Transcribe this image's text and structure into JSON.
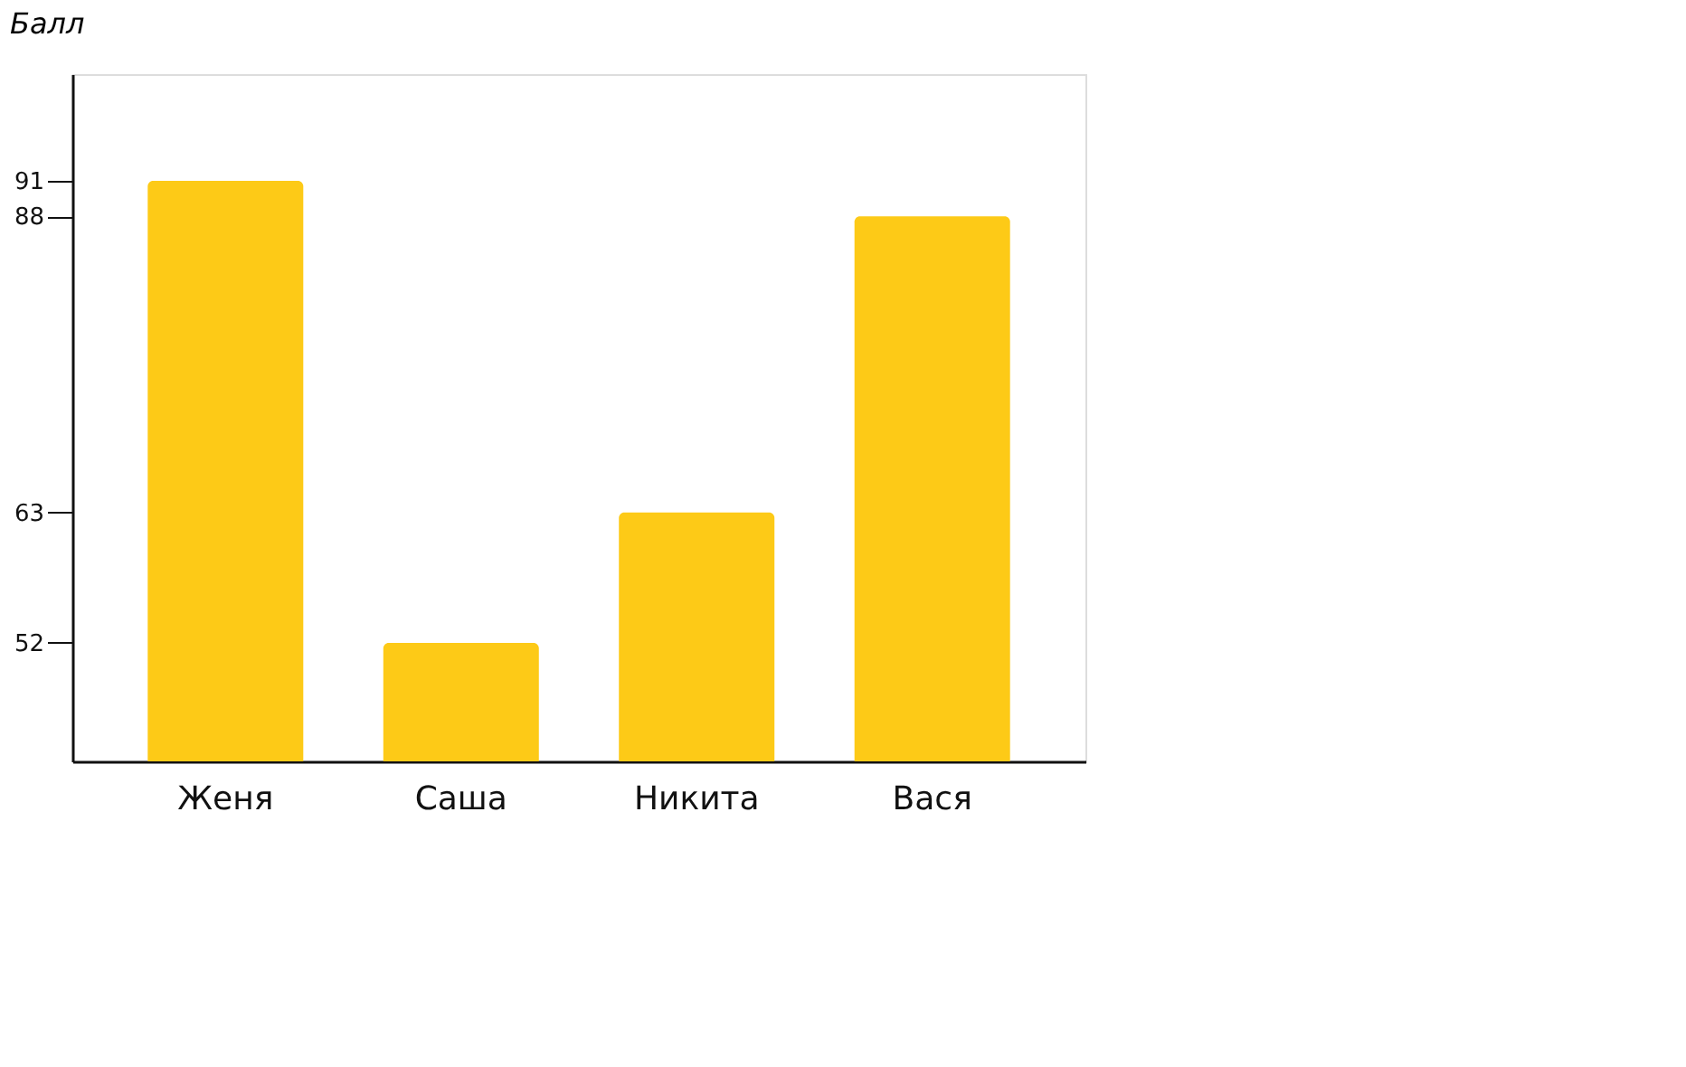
{
  "chart_data": {
    "type": "bar",
    "ylabel": "Балл",
    "categories": [
      "Женя",
      "Саша",
      "Никита",
      "Вася"
    ],
    "values": [
      91,
      52,
      63,
      88
    ],
    "color": "#fdca17",
    "ylim": [
      42,
      100
    ],
    "yticks": [
      52,
      63,
      88,
      91
    ],
    "grid": false
  }
}
